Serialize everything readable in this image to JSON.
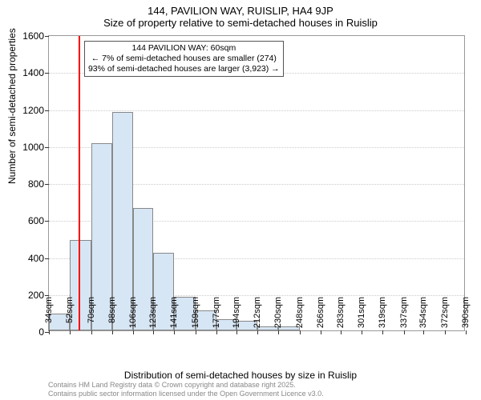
{
  "title": "144, PAVILION WAY, RUISLIP, HA4 9JP",
  "subtitle": "Size of property relative to semi-detached houses in Ruislip",
  "ylabel": "Number of semi-detached properties",
  "xlabel": "Distribution of semi-detached houses by size in Ruislip",
  "footer_line1": "Contains HM Land Registry data © Crown copyright and database right 2025.",
  "footer_line2": "Contains public sector information licensed under the Open Government Licence v3.0.",
  "chart": {
    "type": "histogram",
    "ylim": [
      0,
      1600
    ],
    "ytick_step": 200,
    "background_color": "#ffffff",
    "grid_color": "#cccccc",
    "axis_color": "#999999",
    "bar_fill": "#d7e6f5",
    "bar_border": "#888888",
    "marker_color": "#ff0000",
    "marker_position_sqm": 60,
    "xticks": [
      "34sqm",
      "52sqm",
      "70sqm",
      "88sqm",
      "106sqm",
      "123sqm",
      "141sqm",
      "159sqm",
      "177sqm",
      "194sqm",
      "212sqm",
      "230sqm",
      "248sqm",
      "266sqm",
      "283sqm",
      "301sqm",
      "319sqm",
      "337sqm",
      "354sqm",
      "372sqm",
      "390sqm"
    ],
    "xmin": 34,
    "xmax": 390,
    "values": [
      90,
      490,
      1010,
      1180,
      660,
      420,
      180,
      110,
      60,
      50,
      20,
      20,
      0,
      0,
      0,
      0,
      0,
      0,
      0,
      0
    ],
    "title_fontsize": 13,
    "label_fontsize": 12,
    "tick_fontsize": 11
  },
  "annotation": {
    "line1": "144 PAVILION WAY: 60sqm",
    "line2": "← 7% of semi-detached houses are smaller (274)",
    "line3": "93% of semi-detached houses are larger (3,923) →"
  }
}
